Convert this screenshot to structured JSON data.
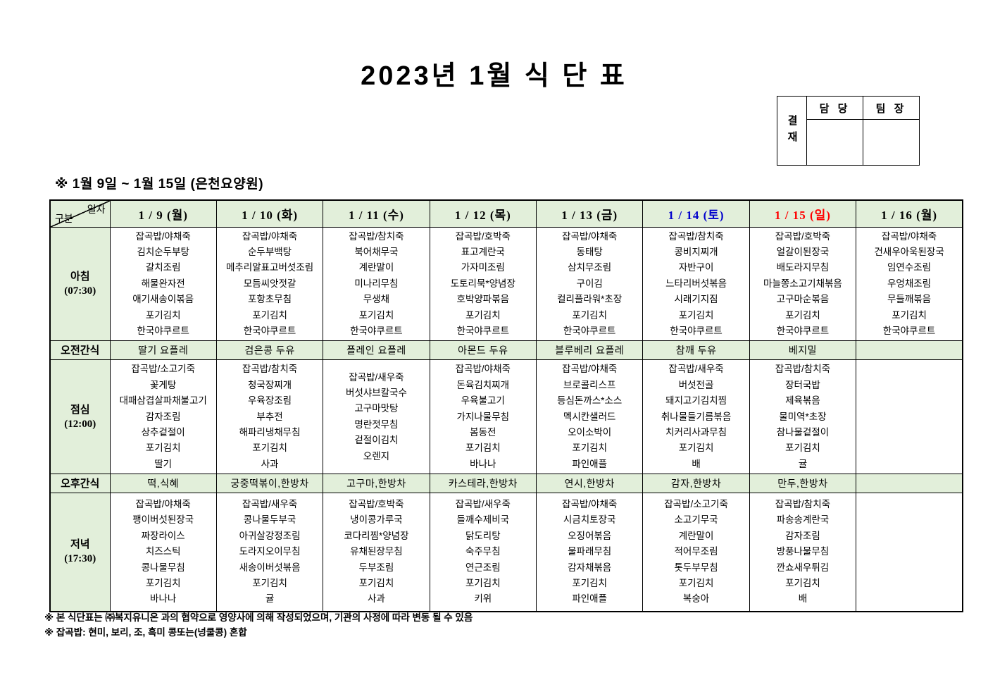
{
  "title": "2023년 1월 식 단 표",
  "approval": {
    "sign_label": "결재",
    "columns": [
      "담 당",
      "팀 장"
    ]
  },
  "subtitle": "※ 1월 9일 ~ 1월 15일 (은천요양원)",
  "colors": {
    "header_green": "#e2efda",
    "saturday_blue": "#0000cc",
    "sunday_red": "#ff0000",
    "text_black": "#000000"
  },
  "table": {
    "corner": {
      "top": "일자",
      "bottom": "구분"
    },
    "dates": [
      {
        "label": "1 / 9 (월)",
        "color": "#000000"
      },
      {
        "label": "1 / 10 (화)",
        "color": "#000000"
      },
      {
        "label": "1 / 11 (수)",
        "color": "#000000"
      },
      {
        "label": "1 / 12 (목)",
        "color": "#000000"
      },
      {
        "label": "1 / 13 (금)",
        "color": "#000000"
      },
      {
        "label": "1 / 14 (토)",
        "color": "#0000cc"
      },
      {
        "label": "1 / 15 (일)",
        "color": "#ff0000"
      },
      {
        "label": "1 / 16 (월)",
        "color": "#000000"
      }
    ],
    "rows": [
      {
        "type": "meal",
        "label": "아침",
        "time": "(07:30)",
        "cells": [
          [
            "잡곡밥/야채죽",
            "김치순두부탕",
            "갈치조림",
            "해물완자전",
            "애기새송이볶음",
            "포기김치",
            "한국야쿠르트"
          ],
          [
            "잡곡밥/야채죽",
            "순두부백탕",
            "메추리알표고버섯조림",
            "모듬씨앗젓갈",
            "포항초무침",
            "포기김치",
            "한국야쿠르트"
          ],
          [
            "잡곡밥/참치죽",
            "북어채무국",
            "계란말이",
            "미나리무침",
            "무생채",
            "포기김치",
            "한국야쿠르트"
          ],
          [
            "잡곡밥/호박죽",
            "표고계란국",
            "가자미조림",
            "도토리묵*양념장",
            "호박양파볶음",
            "포기김치",
            "한국야쿠르트"
          ],
          [
            "잡곡밥/야채죽",
            "동태탕",
            "삼치무조림",
            "구이김",
            "컬리플라워*초장",
            "포기김치",
            "한국야쿠르트"
          ],
          [
            "잡곡밥/참치죽",
            "콩비지찌개",
            "자반구이",
            "느타리버섯볶음",
            "시래기지짐",
            "포기김치",
            "한국야쿠르트"
          ],
          [
            "잡곡밥/호박죽",
            "얼갈이된장국",
            "배도라지무침",
            "마늘쫑소고기채볶음",
            "고구마순볶음",
            "포기김치",
            "한국야쿠르트"
          ],
          [
            "잡곡밥/야채죽",
            "건새우아욱된장국",
            "임연수조림",
            "우엉채조림",
            "무들깨볶음",
            "포기김치",
            "한국야쿠르트"
          ]
        ]
      },
      {
        "type": "snack",
        "label": "오전간식",
        "cells": [
          "딸기 요플레",
          "검은콩 두유",
          "플레인 요플레",
          "아몬드 두유",
          "블루베리 요플레",
          "참깨 두유",
          "베지밀",
          ""
        ]
      },
      {
        "type": "meal",
        "label": "점심",
        "time": "(12:00)",
        "cells": [
          [
            "잡곡밥/소고기죽",
            "꽃게탕",
            "대패삼겹살파채불고기",
            "감자조림",
            "상추겉절이",
            "포기김치",
            "딸기"
          ],
          [
            "잡곡밥/참치죽",
            "청국장찌개",
            "우육장조림",
            "부추전",
            "해파리냉채무침",
            "포기김치",
            "사과"
          ],
          [
            "잡곡밥/새우죽",
            "버섯샤브칼국수",
            "고구마맛탕",
            "명란젓무침",
            "겉절이김치",
            "오렌지"
          ],
          [
            "잡곡밥/야채죽",
            "돈육김치찌개",
            "우육불고기",
            "가지나물무침",
            "봄동전",
            "포기김치",
            "바나나"
          ],
          [
            "잡곡밥/야채죽",
            "브로콜리스프",
            "등심돈까스*소스",
            "멕시칸샐러드",
            "오이소박이",
            "포기김치",
            "파인애플"
          ],
          [
            "잡곡밥/새우죽",
            "버섯전골",
            "돼지고기김치찜",
            "취나물들기름볶음",
            "치커리사과무침",
            "포기김치",
            "배"
          ],
          [
            "잡곡밥/참치죽",
            "장터국밥",
            "제육볶음",
            "물미역*초장",
            "참나물겉절이",
            "포기김치",
            "귤"
          ],
          []
        ]
      },
      {
        "type": "snack",
        "label": "오후간식",
        "cells": [
          "떡,식혜",
          "궁중떡볶이,한방차",
          "고구마,한방차",
          "카스테라,한방차",
          "연시,한방차",
          "감자,한방차",
          "만두,한방차",
          ""
        ]
      },
      {
        "type": "meal",
        "label": "저녁",
        "time": "(17:30)",
        "cells": [
          [
            "잡곡밥/야채죽",
            "팽이버섯된장국",
            "짜장라이스",
            "치즈스틱",
            "콩나물무침",
            "포기김치",
            "바나나"
          ],
          [
            "잡곡밥/새우죽",
            "콩나물두부국",
            "아귀살강정조림",
            "도라지오이무침",
            "새송이버섯볶음",
            "포기김치",
            "귤"
          ],
          [
            "잡곡밥/호박죽",
            "냉이콩가루국",
            "코다리찜*양념장",
            "유채된장무침",
            "두부조림",
            "포기김치",
            "사과"
          ],
          [
            "잡곡밥/새우죽",
            "들깨수제비국",
            "닭도리탕",
            "숙주무침",
            "연근조림",
            "포기김치",
            "키위"
          ],
          [
            "잡곡밥/야채죽",
            "시금치토장국",
            "오징어볶음",
            "물파래무침",
            "감자채볶음",
            "포기김치",
            "파인애플"
          ],
          [
            "잡곡밥/소고기죽",
            "소고기무국",
            "계란말이",
            "적어무조림",
            "톳두부무침",
            "포기김치",
            "복숭아"
          ],
          [
            "잡곡밥/참치죽",
            "파송송계란국",
            "감자조림",
            "방풍나물무침",
            "깐쇼새우튀김",
            "포기김치",
            "배"
          ],
          []
        ]
      }
    ]
  },
  "footnotes": [
    "※ 본 식단표는 ㈜복지유니온 과의 협약으로 영양사에 의해 작성되었으며, 기관의 사정에 따라 변동 될 수 있음",
    "※ 잡곡밥: 현미, 보리, 조, 흑미 콩또는(넝쿨콩) 혼합"
  ]
}
